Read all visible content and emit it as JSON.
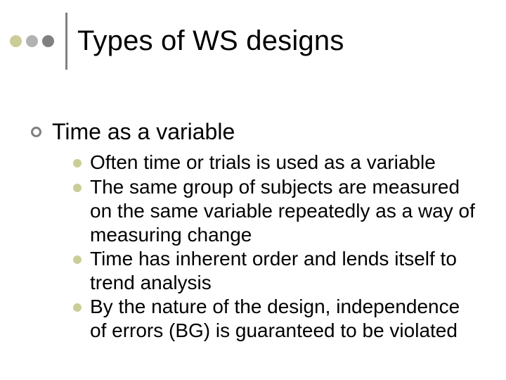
{
  "colors": {
    "background": "#ffffff",
    "text": "#000000",
    "dot1": "#cccc99",
    "dot2": "#b2b2b2",
    "dot3": "#808080",
    "divider": "#808080",
    "ring_border": "#808080",
    "lvl2_bullet": "#cccc99"
  },
  "title": "Types of WS designs",
  "body": {
    "heading": "Time as a variable",
    "points": [
      "Often time or trials is used as a variable",
      "The same group of subjects are measured on the same variable repeatedly as a way of measuring change",
      "Time has inherent order and lends itself to trend analysis",
      "By the nature of the design, independence of errors (BG) is guaranteed to be violated"
    ]
  },
  "typography": {
    "title_fontsize": 40,
    "lvl1_fontsize": 32,
    "lvl2_fontsize": 28,
    "font_family": "Arial"
  }
}
